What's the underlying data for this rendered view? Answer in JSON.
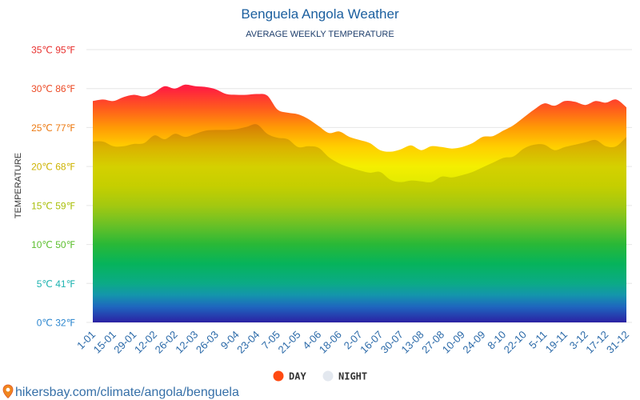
{
  "chart_data": {
    "type": "area",
    "title": "Benguela Angola Weather",
    "subtitle": "AVERAGE WEEKLY TEMPERATURE",
    "ylabel": "TEMPERATURE",
    "ylim": [
      0,
      35
    ],
    "grid": true,
    "y_ticks": [
      {
        "value": 0,
        "label": "0℃ 32℉",
        "color": "#2b86cf"
      },
      {
        "value": 5,
        "label": "5℃ 41℉",
        "color": "#1db3b0"
      },
      {
        "value": 10,
        "label": "10℃ 50℉",
        "color": "#5cbf2e"
      },
      {
        "value": 15,
        "label": "15℃ 59℉",
        "color": "#a9bf0a"
      },
      {
        "value": 20,
        "label": "20℃ 68℉",
        "color": "#cdb300"
      },
      {
        "value": 25,
        "label": "25℃ 77℉",
        "color": "#ec7a12"
      },
      {
        "value": 30,
        "label": "30℃ 86℉",
        "color": "#ec4a25"
      },
      {
        "value": 35,
        "label": "35℃ 95℉",
        "color": "#e8302e"
      }
    ],
    "x_labels": [
      "1-01",
      "15-01",
      "29-01",
      "12-02",
      "26-02",
      "12-03",
      "26-03",
      "9-04",
      "23-04",
      "7-05",
      "21-05",
      "4-06",
      "18-06",
      "2-07",
      "16-07",
      "30-07",
      "13-08",
      "27-08",
      "10-09",
      "24-09",
      "8-10",
      "22-10",
      "5-11",
      "19-11",
      "3-12",
      "17-12",
      "31-12"
    ],
    "x_label_every": 2,
    "color_scale": [
      {
        "t": 35,
        "color": "#ff1448"
      },
      {
        "t": 30,
        "color": "#ff2040"
      },
      {
        "t": 27.5,
        "color": "#ff5a1e"
      },
      {
        "t": 25,
        "color": "#ff9a05"
      },
      {
        "t": 22.5,
        "color": "#ffcf00"
      },
      {
        "t": 20,
        "color": "#f4ef00"
      },
      {
        "t": 17.5,
        "color": "#dfea00"
      },
      {
        "t": 15,
        "color": "#b6e012"
      },
      {
        "t": 12.5,
        "color": "#74d42a"
      },
      {
        "t": 10,
        "color": "#2cc83c"
      },
      {
        "t": 7.5,
        "color": "#06c062"
      },
      {
        "t": 5,
        "color": "#0cb48e"
      },
      {
        "t": 3.5,
        "color": "#159cb4"
      },
      {
        "t": 2,
        "color": "#1f6ac6"
      },
      {
        "t": 0,
        "color": "#2c22a8"
      }
    ],
    "series": [
      {
        "name": "DAY",
        "color": "#ff4a12",
        "values": [
          28.4,
          28.6,
          28.4,
          28.9,
          29.2,
          29.0,
          29.5,
          30.3,
          30.0,
          30.5,
          30.3,
          30.2,
          29.9,
          29.3,
          29.2,
          29.2,
          29.3,
          29.1,
          27.3,
          26.9,
          26.7,
          26.1,
          25.2,
          24.3,
          24.5,
          23.8,
          23.4,
          23.0,
          22.1,
          21.9,
          22.2,
          22.7,
          22.1,
          22.6,
          22.5,
          22.3,
          22.5,
          23.0,
          23.8,
          23.9,
          24.6,
          25.3,
          26.3,
          27.3,
          28.1,
          27.8,
          28.4,
          28.3,
          27.9,
          28.4,
          28.2,
          28.6,
          27.6
        ]
      },
      {
        "name": "NIGHT",
        "color": "#e3e8ef",
        "values": [
          23.2,
          23.2,
          22.6,
          22.6,
          22.9,
          23.0,
          24.0,
          23.5,
          24.2,
          23.8,
          24.2,
          24.6,
          24.7,
          24.7,
          24.8,
          25.1,
          25.4,
          24.2,
          23.7,
          23.5,
          22.5,
          22.6,
          22.4,
          21.2,
          20.4,
          19.9,
          19.5,
          19.2,
          19.3,
          18.3,
          18.0,
          18.2,
          18.1,
          18.0,
          18.7,
          18.6,
          18.9,
          19.3,
          19.9,
          20.5,
          21.1,
          21.3,
          22.3,
          22.8,
          22.8,
          22.1,
          22.5,
          22.8,
          23.1,
          23.4,
          22.6,
          22.6,
          23.8
        ]
      }
    ]
  },
  "footer": {
    "icon": "location-pin-icon",
    "text": "hikersbay.com/climate/angola/benguela"
  }
}
